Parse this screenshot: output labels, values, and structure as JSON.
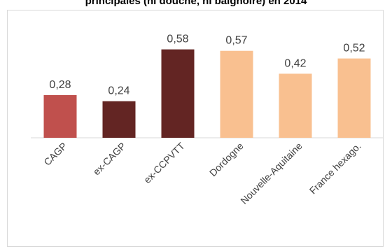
{
  "chart_data": {
    "type": "bar",
    "title": "principales (ni douche, ni baignoire) en 2014",
    "categories": [
      "CAGP",
      "ex-CAGP",
      "ex-CCPVTT",
      "Dordogne",
      "Nouvelle-Aquitaine",
      "France hexago."
    ],
    "values": [
      0.28,
      0.24,
      0.58,
      0.57,
      0.42,
      0.52
    ],
    "value_labels": [
      "0,28",
      "0,24",
      "0,58",
      "0,57",
      "0,42",
      "0,52"
    ],
    "bar_colors": [
      "#c0504d",
      "#632523",
      "#632523",
      "#f9c090",
      "#f9c090",
      "#f9c090"
    ],
    "ylim": [
      0,
      0.6
    ],
    "grid": false,
    "legend": "none"
  }
}
